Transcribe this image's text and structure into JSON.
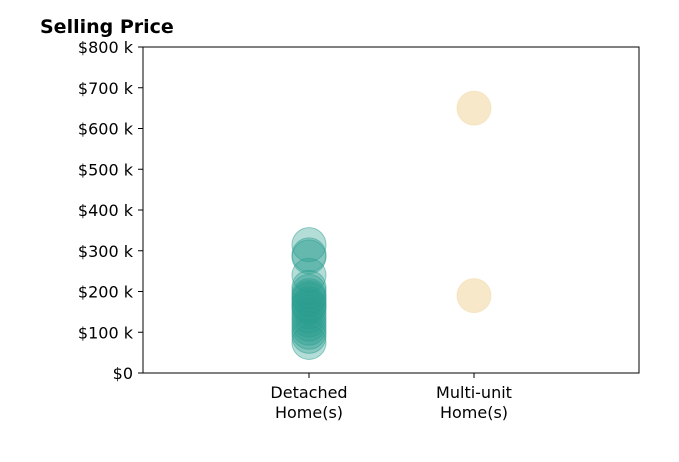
{
  "chart_data": {
    "type": "scatter",
    "title": "Selling Price",
    "xlabel": "",
    "ylabel": "",
    "categories": [
      [
        "Detached",
        "Home(s)"
      ],
      [
        "Multi-unit",
        "Home(s)"
      ]
    ],
    "ylim": [
      0,
      800000
    ],
    "y_ticks": [
      {
        "value": 0,
        "label": "$0"
      },
      {
        "value": 100000,
        "label": "$100 k"
      },
      {
        "value": 200000,
        "label": "$200 k"
      },
      {
        "value": 300000,
        "label": "$300 k"
      },
      {
        "value": 400000,
        "label": "$400 k"
      },
      {
        "value": 500000,
        "label": "$500 k"
      },
      {
        "value": 600000,
        "label": "$600 k"
      },
      {
        "value": 700000,
        "label": "$700 k"
      },
      {
        "value": 800000,
        "label": "$800 k"
      }
    ],
    "grid": false,
    "series": [
      {
        "category_index": 0,
        "color": "#2a9d8f",
        "values": [
          75000,
          90000,
          100000,
          110000,
          120000,
          130000,
          140000,
          150000,
          160000,
          165000,
          170000,
          180000,
          185000,
          190000,
          200000,
          210000,
          240000,
          285000,
          290000,
          315000
        ]
      },
      {
        "category_index": 1,
        "color": "#f2d9a6",
        "values": [
          190000,
          650000
        ]
      }
    ]
  }
}
